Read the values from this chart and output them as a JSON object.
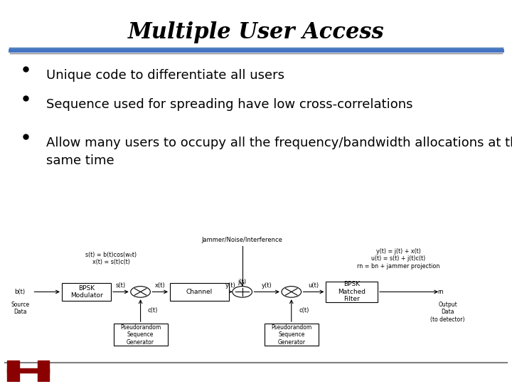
{
  "title": "Multiple User Access",
  "bullets": [
    "Unique code to differentiate all users",
    "Sequence used for spreading have low cross-correlations",
    "Allow many users to occupy all the frequency/bandwidth allocations at that\nsame time"
  ],
  "bg_color": "#ffffff",
  "title_color": "#000000",
  "bullet_color": "#000000",
  "title_fontsize": 22,
  "bullet_fontsize": 13,
  "line_color1": "#4472c4",
  "line_color2": "#7f7f7f",
  "logo_color": "#8b0000"
}
